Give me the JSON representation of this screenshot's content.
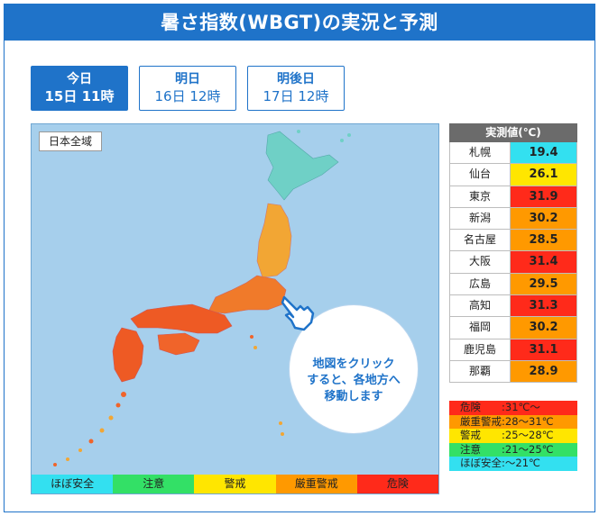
{
  "title": "暑さ指数(WBGT)の実況と予測",
  "tabs": [
    {
      "day": "今日",
      "time": "15日 11時",
      "active": true
    },
    {
      "day": "明日",
      "time": "16日 12時",
      "active": false
    },
    {
      "day": "明後日",
      "time": "17日 12時",
      "active": false
    }
  ],
  "map": {
    "region_label": "日本全域",
    "callout_text": "地図をクリック\nすると、各地方へ\n移動します",
    "icon": "pointing-hand-icon"
  },
  "legend_bar": [
    {
      "label": "ほぼ安全",
      "color": "#33e0f0"
    },
    {
      "label": "注意",
      "color": "#33e066"
    },
    {
      "label": "警戒",
      "color": "#ffe600"
    },
    {
      "label": "厳重警戒",
      "color": "#ff9900"
    },
    {
      "label": "危険",
      "color": "#ff2a1a"
    }
  ],
  "observations": {
    "header": "実測値(℃)",
    "rows": [
      {
        "city": "札幌",
        "value": "19.4",
        "color": "#33e0f0"
      },
      {
        "city": "仙台",
        "value": "26.1",
        "color": "#ffe600"
      },
      {
        "city": "東京",
        "value": "31.9",
        "color": "#ff2a1a"
      },
      {
        "city": "新潟",
        "value": "30.2",
        "color": "#ff9900"
      },
      {
        "city": "名古屋",
        "value": "28.5",
        "color": "#ff9900"
      },
      {
        "city": "大阪",
        "value": "31.4",
        "color": "#ff2a1a"
      },
      {
        "city": "広島",
        "value": "29.5",
        "color": "#ff9900"
      },
      {
        "city": "高知",
        "value": "31.3",
        "color": "#ff2a1a"
      },
      {
        "city": "福岡",
        "value": "30.2",
        "color": "#ff9900"
      },
      {
        "city": "鹿児島",
        "value": "31.1",
        "color": "#ff2a1a"
      },
      {
        "city": "那覇",
        "value": "28.9",
        "color": "#ff9900"
      }
    ]
  },
  "scale": [
    {
      "name": "危険",
      "range": ":31℃～",
      "color": "#ff2a1a"
    },
    {
      "name": "厳重警戒",
      "range": ":28～31℃",
      "color": "#ff9900"
    },
    {
      "name": "警戒",
      "range": ":25～28℃",
      "color": "#ffe600"
    },
    {
      "name": "注意",
      "range": ":21～25℃",
      "color": "#33e066"
    },
    {
      "name": "ほぼ安全",
      "range": ":～21℃",
      "color": "#33e0f0"
    }
  ]
}
